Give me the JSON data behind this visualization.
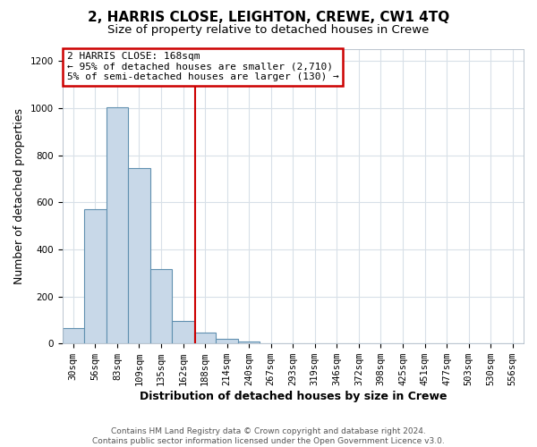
{
  "title": "2, HARRIS CLOSE, LEIGHTON, CREWE, CW1 4TQ",
  "subtitle": "Size of property relative to detached houses in Crewe",
  "xlabel": "Distribution of detached houses by size in Crewe",
  "ylabel": "Number of detached properties",
  "bar_labels": [
    "30sqm",
    "56sqm",
    "83sqm",
    "109sqm",
    "135sqm",
    "162sqm",
    "188sqm",
    "214sqm",
    "240sqm",
    "267sqm",
    "293sqm",
    "319sqm",
    "346sqm",
    "372sqm",
    "398sqm",
    "425sqm",
    "451sqm",
    "477sqm",
    "503sqm",
    "530sqm",
    "556sqm"
  ],
  "bar_values": [
    65,
    570,
    1005,
    745,
    315,
    95,
    45,
    20,
    10,
    0,
    0,
    0,
    0,
    0,
    0,
    0,
    0,
    0,
    0,
    0,
    0
  ],
  "bar_color": "#c8d8e8",
  "bar_edge_color": "#6090b0",
  "vline_color": "#cc0000",
  "annotation_title": "2 HARRIS CLOSE: 168sqm",
  "annotation_line1": "← 95% of detached houses are smaller (2,710)",
  "annotation_line2": "5% of semi-detached houses are larger (130) →",
  "annotation_box_color": "#ffffff",
  "annotation_box_edge": "#cc0000",
  "ylim": [
    0,
    1250
  ],
  "yticks": [
    0,
    200,
    400,
    600,
    800,
    1000,
    1200
  ],
  "footer_line1": "Contains HM Land Registry data © Crown copyright and database right 2024.",
  "footer_line2": "Contains public sector information licensed under the Open Government Licence v3.0.",
  "background_color": "#ffffff",
  "plot_background": "#ffffff",
  "grid_color": "#d8e0e8",
  "title_fontsize": 11,
  "subtitle_fontsize": 9.5,
  "axis_label_fontsize": 9,
  "tick_fontsize": 7.5,
  "footer_fontsize": 6.5,
  "vline_x": 5.55
}
